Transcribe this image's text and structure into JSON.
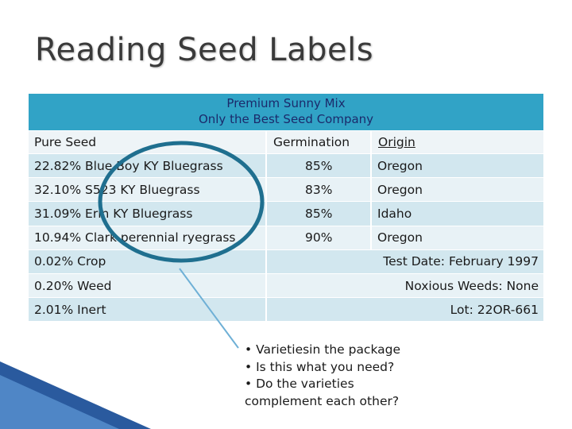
{
  "title": "Reading Seed Labels",
  "label": {
    "product_name": "Premium Sunny Mix",
    "company": "Only the Best Seed Company",
    "headers": {
      "pure_seed": "Pure Seed",
      "germination": "Germination",
      "origin": "Origin"
    },
    "rows": [
      {
        "pure_seed": "22.82% Blue Boy KY Bluegrass",
        "germination": "85%",
        "origin": "Oregon"
      },
      {
        "pure_seed": "32.10% S523 KY Bluegrass",
        "germination": "83%",
        "origin": "Oregon"
      },
      {
        "pure_seed": "31.09% Erin KY Bluegrass",
        "germination": "85%",
        "origin": "Idaho"
      },
      {
        "pure_seed": "10.94% Clark perennial ryegrass",
        "germination": "90%",
        "origin": "Oregon"
      }
    ],
    "extra_rows": [
      {
        "left": "0.02% Crop",
        "right": "Test Date: February 1997"
      },
      {
        "left": "0.20% Weed",
        "right": "Noxious Weeds: None"
      },
      {
        "left": "2.01% Inert",
        "right": "Lot: 22OR-661"
      }
    ]
  },
  "callout": {
    "lines": [
      "• Varietiesin the package",
      "• Is this what you need?",
      "• Do the varieties",
      "complement each other?"
    ]
  },
  "colors": {
    "header_bg": "#31a3c6",
    "header_text": "#1b2a6b",
    "row_dark": "#d2e7ef",
    "row_light": "#e8f2f6",
    "highlight_ellipse": "#1f6f8f",
    "pointer_line": "#6fb0d6",
    "corner_decoration": "#2a5a9e"
  }
}
